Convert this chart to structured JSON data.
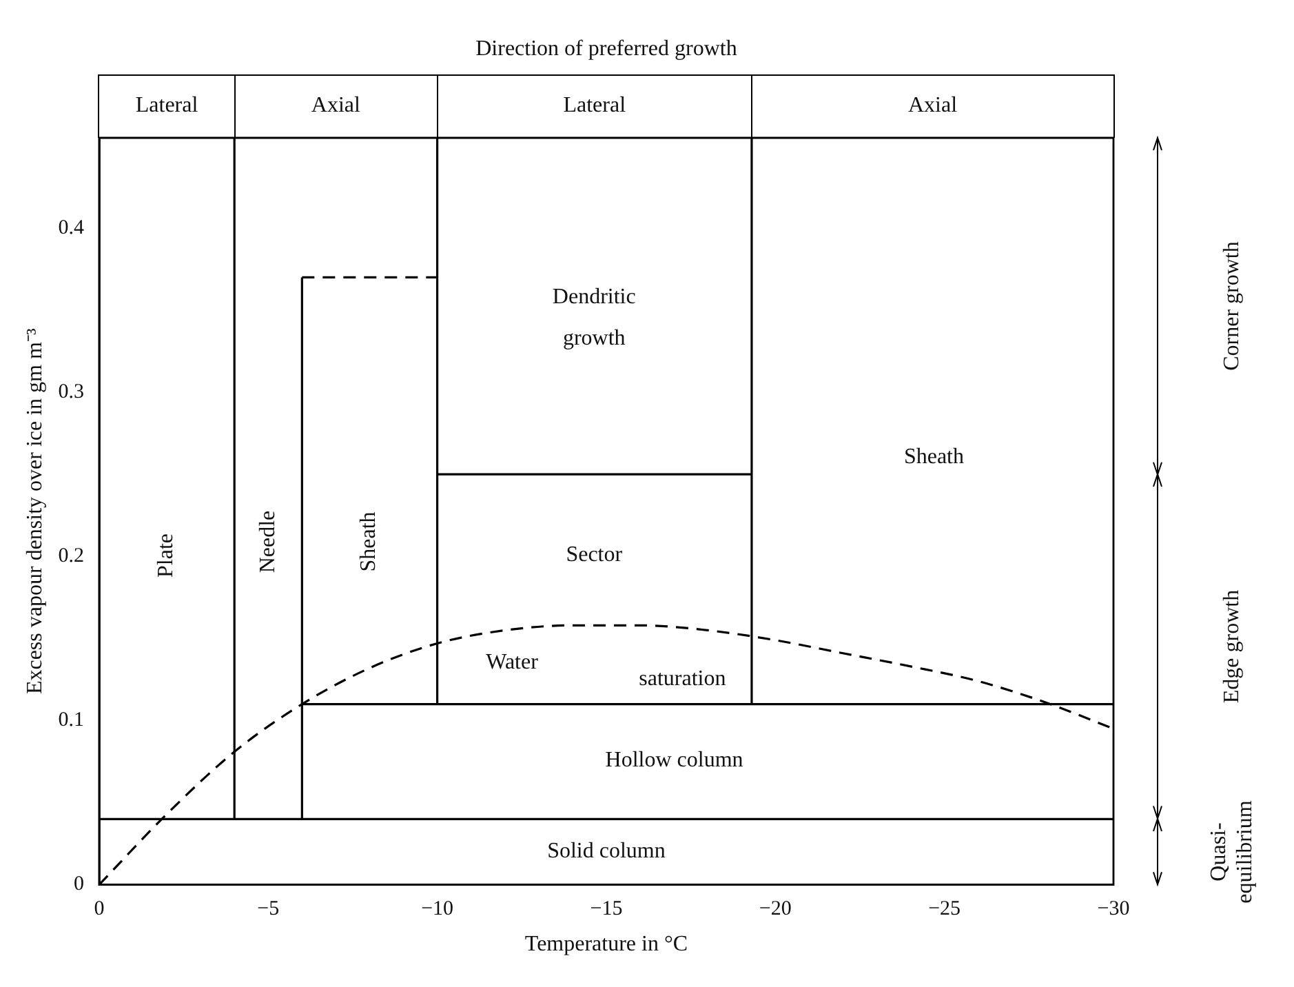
{
  "chart_data": {
    "type": "line",
    "title": "Direction of preferred growth",
    "xlabel": "Temperature in °C",
    "ylabel": "Excess vapour density over ice in gm m⁻³",
    "xlim": [
      0,
      -30
    ],
    "xticks": [
      0,
      -5,
      -10,
      -15,
      -20,
      -25,
      -30
    ],
    "ylim": [
      0,
      0.455
    ],
    "yticks": [
      0,
      0.1,
      0.2,
      0.3,
      0.4
    ],
    "grid": false,
    "legend": false,
    "marker": "none",
    "series": [
      {
        "type": "line",
        "color": "#000000",
        "line_style": "dashed",
        "x": [
          0,
          -2,
          -4,
          -6,
          -8,
          -10,
          -12,
          -14,
          -16,
          -18,
          -20,
          -22,
          -24,
          -26,
          -28,
          -30
        ],
        "values": [
          0,
          0.043,
          0.081,
          0.11,
          0.132,
          0.147,
          0.155,
          0.158,
          0.158,
          0.155,
          0.149,
          0.141,
          0.133,
          0.124,
          0.111,
          0.095
        ]
      },
      {
        "type": "line",
        "color": "#000000",
        "line_style": "solid",
        "x": [
          0,
          -30
        ],
        "values": [
          0.04,
          0.04
        ]
      },
      {
        "type": "line",
        "color": "#000000",
        "line_style": "solid",
        "x": [
          -4,
          -4
        ],
        "values": [
          0.04,
          0.455
        ]
      },
      {
        "type": "line",
        "color": "#000000",
        "line_style": "solid",
        "x": [
          -6,
          -6
        ],
        "values": [
          0.04,
          0.37
        ]
      },
      {
        "type": "line",
        "color": "#000000",
        "line_style": "dashed",
        "x": [
          -6,
          -10
        ],
        "values": [
          0.37,
          0.37
        ]
      },
      {
        "type": "line",
        "color": "#000000",
        "line_style": "solid",
        "x": [
          -10,
          -10
        ],
        "values": [
          0.11,
          0.455
        ]
      },
      {
        "type": "line",
        "color": "#000000",
        "line_style": "solid",
        "x": [
          -6,
          -30
        ],
        "values": [
          0.11,
          0.11
        ]
      },
      {
        "type": "line",
        "color": "#000000",
        "line_style": "solid",
        "x": [
          -10,
          -19.3
        ],
        "values": [
          0.25,
          0.25
        ]
      },
      {
        "type": "line",
        "color": "#000000",
        "line_style": "solid",
        "x": [
          -19.3,
          -19.3
        ],
        "values": [
          0.11,
          0.455
        ]
      }
    ],
    "annotations": [
      "Lateral",
      "Axial",
      "Lateral",
      "Axial",
      "Plate",
      "Needle",
      "Sheath",
      "Dendritic",
      "growth",
      "Sheath",
      "Sector",
      "Water",
      "saturation",
      "Hollow column",
      "Solid column",
      "Corner growth",
      "Edge growth",
      "Quasi-equilibrium"
    ]
  }
}
